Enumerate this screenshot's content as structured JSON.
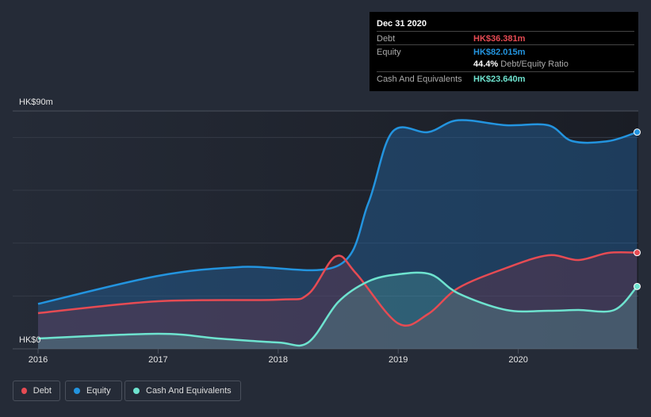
{
  "tooltip": {
    "date": "Dec 31 2020",
    "debt_label": "Debt",
    "debt_value": "HK$36.381m",
    "equity_label": "Equity",
    "equity_value": "HK$82.015m",
    "ratio_value": "44.4%",
    "ratio_label": "Debt/Equity Ratio",
    "cash_label": "Cash And Equivalents",
    "cash_value": "HK$23.640m"
  },
  "legend": {
    "debt": "Debt",
    "equity": "Equity",
    "cash": "Cash And Equivalents"
  },
  "chart_data": {
    "type": "area",
    "ylabel_top": "HK$90m",
    "ylabel_bottom": "HK$0",
    "ylim": [
      0,
      90
    ],
    "xlim": [
      2016,
      2021
    ],
    "x_ticks": [
      "2016",
      "2017",
      "2018",
      "2019",
      "2020"
    ],
    "series": [
      {
        "name": "Equity",
        "color": "#2394df",
        "points": [
          [
            2016,
            17
          ],
          [
            2017,
            27.6
          ],
          [
            2017.7,
            31
          ],
          [
            2018.5,
            31.5
          ],
          [
            2018.75,
            55
          ],
          [
            2018.95,
            82
          ],
          [
            2019.25,
            82
          ],
          [
            2019.5,
            86.5
          ],
          [
            2019.9,
            84.6
          ],
          [
            2020.25,
            84.6
          ],
          [
            2020.45,
            78.6
          ],
          [
            2020.75,
            78.6
          ],
          [
            2020.99,
            82
          ]
        ]
      },
      {
        "name": "Debt",
        "color": "#e64b53",
        "points": [
          [
            2016,
            13.5
          ],
          [
            2017,
            18
          ],
          [
            2018,
            18.6
          ],
          [
            2018.25,
            20.7
          ],
          [
            2018.48,
            35
          ],
          [
            2018.65,
            28.5
          ],
          [
            2019,
            9.6
          ],
          [
            2019.25,
            13.2
          ],
          [
            2019.5,
            23
          ],
          [
            2019.9,
            30.6
          ],
          [
            2020.25,
            35.4
          ],
          [
            2020.5,
            33.6
          ],
          [
            2020.75,
            36.3
          ],
          [
            2020.99,
            36.4
          ]
        ]
      },
      {
        "name": "Cash And Equivalents",
        "color": "#6ee3cf",
        "points": [
          [
            2016,
            3.9
          ],
          [
            2017,
            5.7
          ],
          [
            2017.5,
            3.9
          ],
          [
            2018,
            2.4
          ],
          [
            2018.25,
            2.4
          ],
          [
            2018.5,
            17.7
          ],
          [
            2018.75,
            25.5
          ],
          [
            2019,
            28.2
          ],
          [
            2019.27,
            28.2
          ],
          [
            2019.5,
            21
          ],
          [
            2019.9,
            14.7
          ],
          [
            2020.25,
            14.4
          ],
          [
            2020.5,
            14.7
          ],
          [
            2020.8,
            14.7
          ],
          [
            2020.99,
            23.6
          ]
        ]
      }
    ]
  }
}
